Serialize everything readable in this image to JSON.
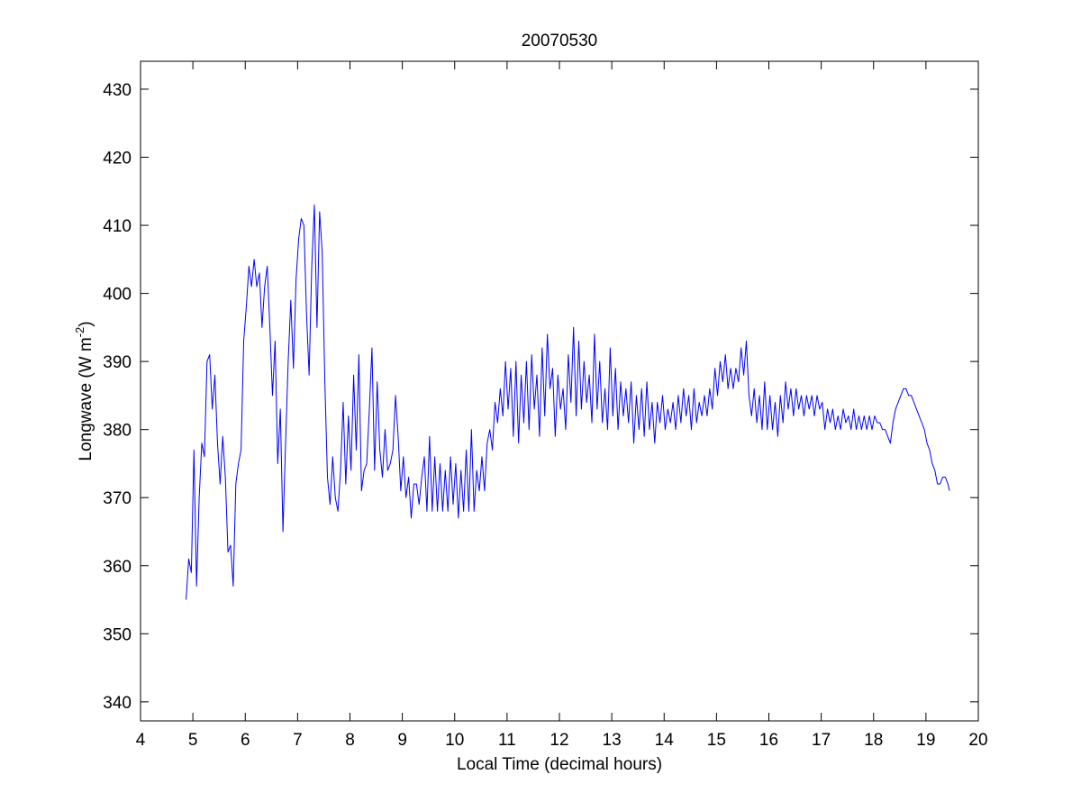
{
  "chart_data": {
    "type": "line",
    "title": "20070530",
    "xlabel": "Local Time (decimal hours)",
    "ylabel": {
      "text": "Longwave (W m",
      "superscript": "-2",
      "suffix": ")"
    },
    "xlim": [
      4,
      20
    ],
    "ylim": [
      337.2,
      434.1
    ],
    "xticks": [
      4,
      5,
      6,
      7,
      8,
      9,
      10,
      11,
      12,
      13,
      14,
      15,
      16,
      17,
      18,
      19,
      20
    ],
    "yticks": [
      340,
      350,
      360,
      370,
      380,
      390,
      400,
      410,
      420,
      430
    ],
    "x": [
      4.87,
      4.92,
      4.97,
      5.02,
      5.07,
      5.12,
      5.17,
      5.22,
      5.27,
      5.32,
      5.37,
      5.42,
      5.47,
      5.52,
      5.57,
      5.62,
      5.67,
      5.72,
      5.77,
      5.82,
      5.87,
      5.92,
      5.97,
      6.02,
      6.07,
      6.12,
      6.17,
      6.22,
      6.27,
      6.32,
      6.37,
      6.42,
      6.47,
      6.52,
      6.57,
      6.62,
      6.67,
      6.72,
      6.77,
      6.82,
      6.87,
      6.92,
      6.97,
      7.02,
      7.07,
      7.12,
      7.17,
      7.22,
      7.27,
      7.32,
      7.37,
      7.42,
      7.47,
      7.52,
      7.57,
      7.62,
      7.67,
      7.72,
      7.77,
      7.82,
      7.87,
      7.92,
      7.97,
      8.02,
      8.07,
      8.12,
      8.17,
      8.22,
      8.27,
      8.32,
      8.37,
      8.42,
      8.47,
      8.52,
      8.57,
      8.62,
      8.67,
      8.72,
      8.77,
      8.82,
      8.87,
      8.92,
      8.97,
      9.02,
      9.07,
      9.12,
      9.17,
      9.22,
      9.27,
      9.32,
      9.37,
      9.42,
      9.47,
      9.52,
      9.57,
      9.62,
      9.67,
      9.72,
      9.77,
      9.82,
      9.87,
      9.92,
      9.97,
      10.02,
      10.07,
      10.12,
      10.17,
      10.22,
      10.27,
      10.32,
      10.37,
      10.42,
      10.47,
      10.52,
      10.57,
      10.62,
      10.67,
      10.72,
      10.77,
      10.82,
      10.87,
      10.92,
      10.97,
      11.02,
      11.07,
      11.12,
      11.17,
      11.22,
      11.27,
      11.32,
      11.37,
      11.42,
      11.47,
      11.52,
      11.57,
      11.62,
      11.67,
      11.72,
      11.77,
      11.82,
      11.87,
      11.92,
      11.97,
      12.02,
      12.07,
      12.12,
      12.17,
      12.22,
      12.27,
      12.32,
      12.37,
      12.42,
      12.47,
      12.52,
      12.57,
      12.62,
      12.67,
      12.72,
      12.77,
      12.82,
      12.87,
      12.92,
      12.97,
      13.02,
      13.07,
      13.12,
      13.17,
      13.22,
      13.27,
      13.32,
      13.37,
      13.42,
      13.47,
      13.52,
      13.57,
      13.62,
      13.67,
      13.72,
      13.77,
      13.82,
      13.87,
      13.92,
      13.97,
      14.02,
      14.07,
      14.12,
      14.17,
      14.22,
      14.27,
      14.32,
      14.37,
      14.42,
      14.47,
      14.52,
      14.57,
      14.62,
      14.67,
      14.72,
      14.77,
      14.82,
      14.87,
      14.92,
      14.97,
      15.02,
      15.07,
      15.12,
      15.17,
      15.22,
      15.27,
      15.32,
      15.37,
      15.42,
      15.47,
      15.52,
      15.57,
      15.62,
      15.67,
      15.72,
      15.77,
      15.82,
      15.87,
      15.92,
      15.97,
      16.02,
      16.07,
      16.12,
      16.17,
      16.22,
      16.27,
      16.32,
      16.37,
      16.42,
      16.47,
      16.52,
      16.57,
      16.62,
      16.67,
      16.72,
      16.77,
      16.82,
      16.87,
      16.92,
      16.97,
      17.02,
      17.07,
      17.12,
      17.17,
      17.22,
      17.27,
      17.32,
      17.37,
      17.42,
      17.47,
      17.52,
      17.57,
      17.62,
      17.67,
      17.72,
      17.77,
      17.82,
      17.87,
      17.92,
      17.97,
      18.02,
      18.07,
      18.12,
      18.17,
      18.22,
      18.27,
      18.32,
      18.37,
      18.42,
      18.47,
      18.52,
      18.57,
      18.62,
      18.67,
      18.72,
      18.77,
      18.82,
      18.87,
      18.92,
      18.97,
      19.02,
      19.07,
      19.12,
      19.17,
      19.22,
      19.27,
      19.32,
      19.37,
      19.42,
      19.45
    ],
    "series": [
      {
        "color": "#0000ff",
        "values": [
          355,
          361,
          359,
          377,
          357,
          370,
          378,
          376,
          390,
          391,
          383,
          388,
          378,
          372,
          379,
          373,
          362,
          363,
          357,
          372,
          375,
          377,
          393,
          398,
          404,
          401,
          405,
          401,
          403,
          395,
          401,
          404,
          395,
          385,
          393,
          375,
          383,
          365,
          378,
          390,
          399,
          389,
          402,
          408,
          411,
          410,
          397,
          388,
          404,
          413,
          395,
          412,
          406,
          387,
          373,
          369,
          376,
          370,
          368,
          374,
          384,
          372,
          382,
          374,
          388,
          377,
          391,
          371,
          374,
          375,
          383,
          392,
          374,
          387,
          377,
          373,
          380,
          374,
          375,
          377,
          385,
          379,
          371,
          376,
          370,
          373,
          367,
          372,
          372,
          369,
          373,
          376,
          368,
          379,
          368,
          376,
          368,
          375,
          368,
          374,
          368,
          376,
          369,
          375,
          367,
          374,
          368,
          377,
          368,
          380,
          368,
          374,
          371,
          376,
          371,
          378,
          380,
          377,
          384,
          381,
          386,
          382,
          390,
          383,
          389,
          379,
          390,
          378,
          388,
          381,
          390,
          380,
          391,
          383,
          388,
          379,
          392,
          382,
          394,
          386,
          389,
          379,
          388,
          383,
          386,
          380,
          391,
          384,
          395,
          382,
          393,
          383,
          390,
          384,
          388,
          381,
          394,
          383,
          390,
          381,
          386,
          380,
          392,
          382,
          389,
          380,
          387,
          382,
          386,
          381,
          387,
          378,
          385,
          380,
          386,
          379,
          387,
          380,
          384,
          378,
          384,
          381,
          385,
          380,
          383,
          381,
          384,
          380,
          385,
          381,
          386,
          382,
          385,
          380,
          386,
          381,
          384,
          382,
          385,
          382,
          386,
          383,
          389,
          385,
          390,
          387,
          391,
          386,
          389,
          386,
          389,
          387,
          392,
          388,
          393,
          385,
          382,
          386,
          381,
          385,
          380,
          387,
          380,
          385,
          380,
          384,
          379,
          385,
          381,
          387,
          383,
          386,
          382,
          386,
          383,
          385,
          382,
          385,
          383,
          385,
          382,
          385,
          383,
          384,
          380,
          383,
          381,
          383,
          380,
          382,
          380,
          383,
          381,
          382,
          380,
          383,
          380,
          382,
          380,
          382,
          380,
          382,
          380,
          382,
          381,
          381,
          380,
          380,
          379,
          378,
          381,
          383,
          384,
          385,
          386,
          386,
          385,
          385,
          384,
          383,
          382,
          381,
          380,
          378,
          377,
          375,
          374,
          372,
          372,
          373,
          373,
          372,
          371
        ]
      }
    ]
  }
}
